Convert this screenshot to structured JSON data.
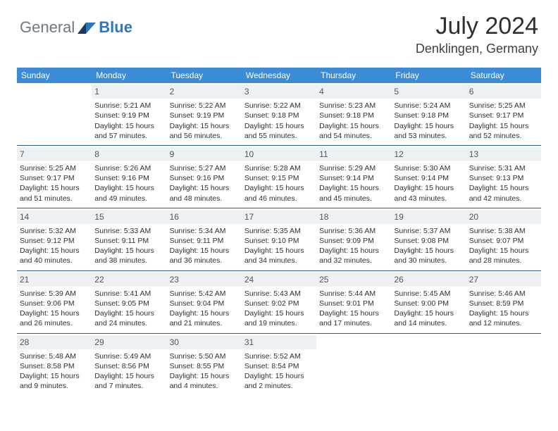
{
  "logo": {
    "text1": "General",
    "text2": "Blue"
  },
  "title": "July 2024",
  "location": "Denklingen, Germany",
  "colors": {
    "header_bg": "#3b8bd6",
    "header_fg": "#ffffff",
    "row_divider": "#2d5f8f",
    "daynum_bg": "#eef1f3",
    "logo_gray": "#6b7a86",
    "logo_blue": "#2d78bc",
    "flag_dark": "#1a3a5a",
    "flag_mid": "#2d78bc"
  },
  "weekdays": [
    "Sunday",
    "Monday",
    "Tuesday",
    "Wednesday",
    "Thursday",
    "Friday",
    "Saturday"
  ],
  "weeks": [
    [
      {
        "day": "",
        "lines": []
      },
      {
        "day": "1",
        "lines": [
          "Sunrise: 5:21 AM",
          "Sunset: 9:19 PM",
          "Daylight: 15 hours",
          "and 57 minutes."
        ]
      },
      {
        "day": "2",
        "lines": [
          "Sunrise: 5:22 AM",
          "Sunset: 9:19 PM",
          "Daylight: 15 hours",
          "and 56 minutes."
        ]
      },
      {
        "day": "3",
        "lines": [
          "Sunrise: 5:22 AM",
          "Sunset: 9:18 PM",
          "Daylight: 15 hours",
          "and 55 minutes."
        ]
      },
      {
        "day": "4",
        "lines": [
          "Sunrise: 5:23 AM",
          "Sunset: 9:18 PM",
          "Daylight: 15 hours",
          "and 54 minutes."
        ]
      },
      {
        "day": "5",
        "lines": [
          "Sunrise: 5:24 AM",
          "Sunset: 9:18 PM",
          "Daylight: 15 hours",
          "and 53 minutes."
        ]
      },
      {
        "day": "6",
        "lines": [
          "Sunrise: 5:25 AM",
          "Sunset: 9:17 PM",
          "Daylight: 15 hours",
          "and 52 minutes."
        ]
      }
    ],
    [
      {
        "day": "7",
        "lines": [
          "Sunrise: 5:25 AM",
          "Sunset: 9:17 PM",
          "Daylight: 15 hours",
          "and 51 minutes."
        ]
      },
      {
        "day": "8",
        "lines": [
          "Sunrise: 5:26 AM",
          "Sunset: 9:16 PM",
          "Daylight: 15 hours",
          "and 49 minutes."
        ]
      },
      {
        "day": "9",
        "lines": [
          "Sunrise: 5:27 AM",
          "Sunset: 9:16 PM",
          "Daylight: 15 hours",
          "and 48 minutes."
        ]
      },
      {
        "day": "10",
        "lines": [
          "Sunrise: 5:28 AM",
          "Sunset: 9:15 PM",
          "Daylight: 15 hours",
          "and 46 minutes."
        ]
      },
      {
        "day": "11",
        "lines": [
          "Sunrise: 5:29 AM",
          "Sunset: 9:14 PM",
          "Daylight: 15 hours",
          "and 45 minutes."
        ]
      },
      {
        "day": "12",
        "lines": [
          "Sunrise: 5:30 AM",
          "Sunset: 9:14 PM",
          "Daylight: 15 hours",
          "and 43 minutes."
        ]
      },
      {
        "day": "13",
        "lines": [
          "Sunrise: 5:31 AM",
          "Sunset: 9:13 PM",
          "Daylight: 15 hours",
          "and 42 minutes."
        ]
      }
    ],
    [
      {
        "day": "14",
        "lines": [
          "Sunrise: 5:32 AM",
          "Sunset: 9:12 PM",
          "Daylight: 15 hours",
          "and 40 minutes."
        ]
      },
      {
        "day": "15",
        "lines": [
          "Sunrise: 5:33 AM",
          "Sunset: 9:11 PM",
          "Daylight: 15 hours",
          "and 38 minutes."
        ]
      },
      {
        "day": "16",
        "lines": [
          "Sunrise: 5:34 AM",
          "Sunset: 9:11 PM",
          "Daylight: 15 hours",
          "and 36 minutes."
        ]
      },
      {
        "day": "17",
        "lines": [
          "Sunrise: 5:35 AM",
          "Sunset: 9:10 PM",
          "Daylight: 15 hours",
          "and 34 minutes."
        ]
      },
      {
        "day": "18",
        "lines": [
          "Sunrise: 5:36 AM",
          "Sunset: 9:09 PM",
          "Daylight: 15 hours",
          "and 32 minutes."
        ]
      },
      {
        "day": "19",
        "lines": [
          "Sunrise: 5:37 AM",
          "Sunset: 9:08 PM",
          "Daylight: 15 hours",
          "and 30 minutes."
        ]
      },
      {
        "day": "20",
        "lines": [
          "Sunrise: 5:38 AM",
          "Sunset: 9:07 PM",
          "Daylight: 15 hours",
          "and 28 minutes."
        ]
      }
    ],
    [
      {
        "day": "21",
        "lines": [
          "Sunrise: 5:39 AM",
          "Sunset: 9:06 PM",
          "Daylight: 15 hours",
          "and 26 minutes."
        ]
      },
      {
        "day": "22",
        "lines": [
          "Sunrise: 5:41 AM",
          "Sunset: 9:05 PM",
          "Daylight: 15 hours",
          "and 24 minutes."
        ]
      },
      {
        "day": "23",
        "lines": [
          "Sunrise: 5:42 AM",
          "Sunset: 9:04 PM",
          "Daylight: 15 hours",
          "and 21 minutes."
        ]
      },
      {
        "day": "24",
        "lines": [
          "Sunrise: 5:43 AM",
          "Sunset: 9:02 PM",
          "Daylight: 15 hours",
          "and 19 minutes."
        ]
      },
      {
        "day": "25",
        "lines": [
          "Sunrise: 5:44 AM",
          "Sunset: 9:01 PM",
          "Daylight: 15 hours",
          "and 17 minutes."
        ]
      },
      {
        "day": "26",
        "lines": [
          "Sunrise: 5:45 AM",
          "Sunset: 9:00 PM",
          "Daylight: 15 hours",
          "and 14 minutes."
        ]
      },
      {
        "day": "27",
        "lines": [
          "Sunrise: 5:46 AM",
          "Sunset: 8:59 PM",
          "Daylight: 15 hours",
          "and 12 minutes."
        ]
      }
    ],
    [
      {
        "day": "28",
        "lines": [
          "Sunrise: 5:48 AM",
          "Sunset: 8:58 PM",
          "Daylight: 15 hours",
          "and 9 minutes."
        ]
      },
      {
        "day": "29",
        "lines": [
          "Sunrise: 5:49 AM",
          "Sunset: 8:56 PM",
          "Daylight: 15 hours",
          "and 7 minutes."
        ]
      },
      {
        "day": "30",
        "lines": [
          "Sunrise: 5:50 AM",
          "Sunset: 8:55 PM",
          "Daylight: 15 hours",
          "and 4 minutes."
        ]
      },
      {
        "day": "31",
        "lines": [
          "Sunrise: 5:52 AM",
          "Sunset: 8:54 PM",
          "Daylight: 15 hours",
          "and 2 minutes."
        ]
      },
      {
        "day": "",
        "lines": []
      },
      {
        "day": "",
        "lines": []
      },
      {
        "day": "",
        "lines": []
      }
    ]
  ]
}
